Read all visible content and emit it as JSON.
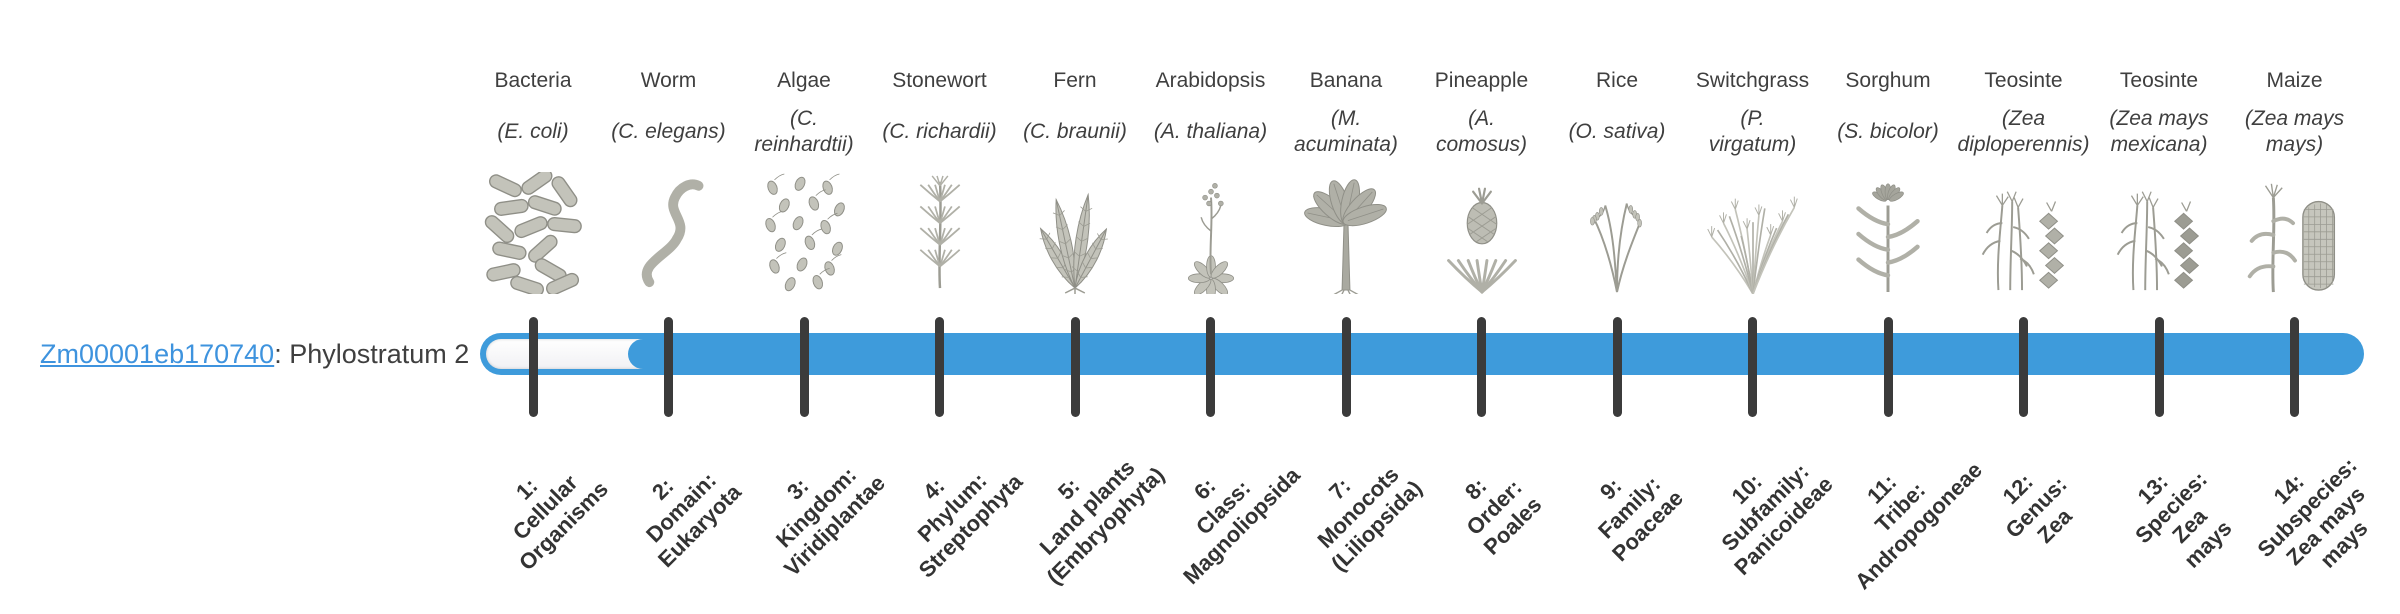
{
  "gene": {
    "id_link": "Zm00001eb170740",
    "suffix": ": Phylostratum 2"
  },
  "chart_data": {
    "type": "table",
    "title": "Gene phylostratum assignment",
    "gene_id": "Zm00001eb170740",
    "assigned_phylostratum": 2,
    "stratum_count": 14,
    "bar": {
      "filled_from_stratum": 2,
      "unfilled_strata": [
        1
      ]
    },
    "colors": {
      "bar_blue": "#3e9bdb",
      "tick_dark": "#3b3b3b",
      "link_blue": "#3e93de",
      "label_text": "#3f3f3f",
      "track_white": "#f6f6f8"
    }
  },
  "strata": [
    {
      "num": 1,
      "organism": "Bacteria",
      "species": "(E. coli)",
      "icon": "bacteria-illustration",
      "rank": "1:\nCellular\nOrganisms"
    },
    {
      "num": 2,
      "organism": "Worm",
      "species": "(C. elegans)",
      "icon": "worm-illustration",
      "rank": "2:\nDomain:\nEukaryota"
    },
    {
      "num": 3,
      "organism": "Algae",
      "species": "(C.\nreinhardtii)",
      "icon": "algae-illustration",
      "rank": "3:\nKingdom:\nViridiplantae"
    },
    {
      "num": 4,
      "organism": "Stonewort",
      "species": "(C. richardii)",
      "icon": "stonewort-illustration",
      "rank": "4:\nPhylum:\nStreptophyta"
    },
    {
      "num": 5,
      "organism": "Fern",
      "species": "(C. braunii)",
      "icon": "fern-illustration",
      "rank": "5:\nLand plants\n(Embryophyta)"
    },
    {
      "num": 6,
      "organism": "Arabidopsis",
      "species": "(A. thaliana)",
      "icon": "arabidopsis-illustration",
      "rank": "6:\nClass:\nMagnoliopsida"
    },
    {
      "num": 7,
      "organism": "Banana",
      "species": "(M.\nacuminata)",
      "icon": "banana-illustration",
      "rank": "7:\nMonocots\n(Liliopsida)"
    },
    {
      "num": 8,
      "organism": "Pineapple",
      "species": "(A.\ncomosus)",
      "icon": "pineapple-illustration",
      "rank": "8:\nOrder:\nPoales"
    },
    {
      "num": 9,
      "organism": "Rice",
      "species": "(O. sativa)",
      "icon": "rice-illustration",
      "rank": "9:\nFamily:\nPoaceae"
    },
    {
      "num": 10,
      "organism": "Switchgrass",
      "species": "(P.\nvirgatum)",
      "icon": "switchgrass-illustration",
      "rank": "10:\nSubfamily:\nPanicoideae"
    },
    {
      "num": 11,
      "organism": "Sorghum",
      "species": "(S. bicolor)",
      "icon": "sorghum-illustration",
      "rank": "11:\nTribe:\nAndropogoneae"
    },
    {
      "num": 12,
      "organism": "Teosinte",
      "species": "(Zea\ndiploperennis)",
      "icon": "teosinte-diploperennis-illustration",
      "rank": "12:\nGenus:\nZea"
    },
    {
      "num": 13,
      "organism": "Teosinte",
      "species": "(Zea mays\nmexicana)",
      "icon": "teosinte-mexicana-illustration",
      "rank": "13:\nSpecies:\nZea\nmays"
    },
    {
      "num": 14,
      "organism": "Maize",
      "species": "(Zea mays\nmays)",
      "icon": "maize-illustration",
      "rank": "14:\nSubspecies:\nZea mays\nmays"
    }
  ]
}
